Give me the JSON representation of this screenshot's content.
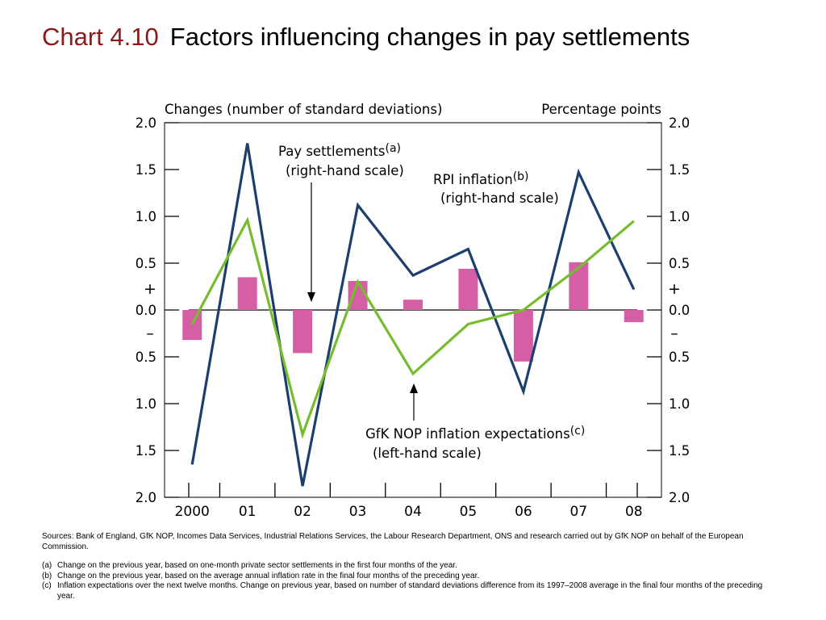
{
  "title": {
    "number": "Chart 4.10",
    "text": "Factors influencing changes in pay settlements"
  },
  "chart_data": {
    "type": "bar+line",
    "left_axis": {
      "label": "Changes (number of standard deviations)",
      "range": [
        -2.0,
        2.0
      ],
      "ticks": [
        2.0,
        1.5,
        1.0,
        0.5,
        0.0,
        -0.5,
        -1.0,
        -1.5,
        -2.0
      ],
      "tick_labels": [
        "2.0",
        "1.5",
        "1.0",
        "0.5",
        "0.0",
        "0.5",
        "1.0",
        "1.5",
        "2.0"
      ]
    },
    "right_axis": {
      "label": "Percentage points",
      "range": [
        -2.0,
        2.0
      ],
      "ticks": [
        2.0,
        1.5,
        1.0,
        0.5,
        0.0,
        -0.5,
        -1.0,
        -1.5,
        -2.0
      ],
      "tick_labels": [
        "2.0",
        "1.5",
        "1.0",
        "0.5",
        "0.0",
        "0.5",
        "1.0",
        "1.5",
        "2.0"
      ]
    },
    "sign_markers": {
      "plus": "+",
      "minus": "–"
    },
    "categories": [
      "2000",
      "01",
      "02",
      "03",
      "04",
      "05",
      "06",
      "07",
      "08"
    ],
    "series": [
      {
        "name": "GfK NOP inflation expectations",
        "type": "bar",
        "axis": "left",
        "color": "#d45fa5",
        "values": [
          -0.32,
          0.35,
          -0.46,
          0.31,
          0.11,
          0.44,
          -0.55,
          0.51,
          -0.13
        ]
      },
      {
        "name": "Pay settlements",
        "type": "line",
        "axis": "right",
        "color": "#1c3f6e",
        "values": [
          -1.65,
          1.78,
          -1.88,
          1.12,
          0.37,
          0.65,
          -0.87,
          1.47,
          0.22
        ]
      },
      {
        "name": "RPI inflation",
        "type": "line",
        "axis": "right",
        "color": "#76bc2f",
        "values": [
          -0.15,
          0.96,
          -1.33,
          0.3,
          -0.68,
          -0.15,
          0.0,
          0.45,
          0.95
        ]
      }
    ],
    "annotations": [
      {
        "text": "Pay settlements",
        "superscript": "(a)",
        "line2": "(right-hand scale)"
      },
      {
        "text": "RPI inflation",
        "superscript": "(b)",
        "line2": "(right-hand scale)"
      },
      {
        "text": "GfK NOP inflation expectations",
        "superscript": "(c)",
        "line2": "(left-hand scale)"
      }
    ]
  },
  "notes": {
    "sources": "Sources:  Bank of England, GfK NOP, Incomes Data Services, Industrial Relations Services, the Labour Research Department, ONS and research carried out by GfK NOP on behalf of the European Commission.",
    "footnotes": [
      {
        "label": "(a)",
        "text": "Change on the previous year, based on one-month private sector settlements in the first four months of the year."
      },
      {
        "label": "(b)",
        "text": "Change on the previous year, based on the average annual inflation rate in the final four months of the preceding year."
      },
      {
        "label": "(c)",
        "text": "Inflation expectations over the next twelve months.  Change on previous year, based on number of standard deviations difference from its 1997–2008 average in the final four months of the preceding year."
      }
    ]
  }
}
